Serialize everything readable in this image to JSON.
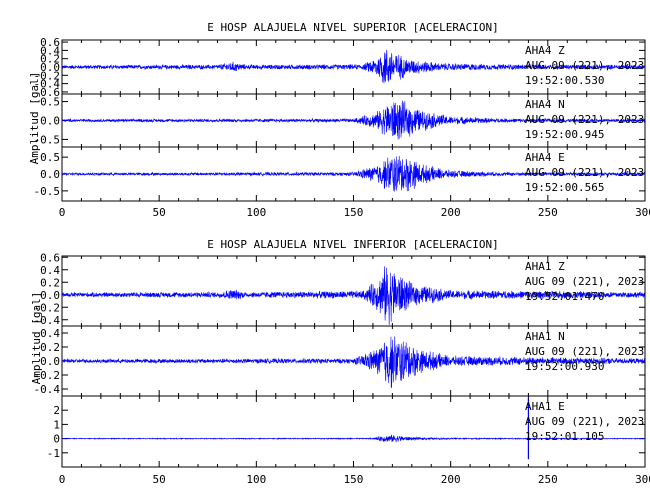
{
  "chart_data": [
    {
      "type": "line",
      "title": "E HOSP ALAJUELA NIVEL SUPERIOR [ACELERACION]",
      "ylabel": "Amplitud [gal]",
      "xlabel": "",
      "xlim": [
        0,
        300
      ],
      "x_ticks": [
        0,
        50,
        100,
        150,
        200,
        250,
        300
      ],
      "grid": false,
      "line_color": "#0000ff",
      "series": [
        {
          "name": "AHA4 Z",
          "station": "AHA4",
          "component": "Z",
          "date": "AUG 09 (221), 2023",
          "time": "19:52:00.530",
          "ylim": [
            -0.65,
            0.65
          ],
          "y_ticks": [
            "0.6",
            "0.4",
            "0.2",
            "0.0",
            "-0.2",
            "-0.4",
            "-0.6"
          ],
          "y_tick_values": [
            0.6,
            0.4,
            0.2,
            0.0,
            -0.2,
            -0.4,
            -0.6
          ],
          "envelope": [
            [
              0,
              0.05
            ],
            [
              80,
              0.06
            ],
            [
              88,
              0.14
            ],
            [
              95,
              0.06
            ],
            [
              155,
              0.07
            ],
            [
              163,
              0.3
            ],
            [
              166,
              0.56
            ],
            [
              170,
              0.45
            ],
            [
              178,
              0.22
            ],
            [
              195,
              0.1
            ],
            [
              225,
              0.07
            ],
            [
              300,
              0.06
            ]
          ]
        },
        {
          "name": "AHA4 N",
          "station": "AHA4",
          "component": "N",
          "date": "AUG 09 (221), 2023",
          "time": "19:52:00.945",
          "ylim": [
            -0.7,
            0.7
          ],
          "y_ticks": [
            "0.5",
            "0.0",
            "-0.5"
          ],
          "y_tick_values": [
            0.5,
            0.0,
            -0.5
          ],
          "envelope": [
            [
              0,
              0.04
            ],
            [
              150,
              0.05
            ],
            [
              162,
              0.25
            ],
            [
              170,
              0.62
            ],
            [
              176,
              0.55
            ],
            [
              185,
              0.3
            ],
            [
              200,
              0.12
            ],
            [
              225,
              0.06
            ],
            [
              300,
              0.05
            ]
          ]
        },
        {
          "name": "AHA4 E",
          "station": "AHA4",
          "component": "E",
          "date": "AUG 09 (221), 2023",
          "time": "19:52:00.565",
          "ylim": [
            -0.8,
            0.8
          ],
          "y_ticks": [
            "0.5",
            "0.0",
            "-0.5"
          ],
          "y_tick_values": [
            0.5,
            0.0,
            -0.5
          ],
          "envelope": [
            [
              0,
              0.04
            ],
            [
              150,
              0.06
            ],
            [
              162,
              0.3
            ],
            [
              170,
              0.68
            ],
            [
              177,
              0.62
            ],
            [
              186,
              0.3
            ],
            [
              200,
              0.12
            ],
            [
              225,
              0.06
            ],
            [
              300,
              0.05
            ]
          ]
        }
      ]
    },
    {
      "type": "line",
      "title": "E HOSP ALAJUELA NIVEL INFERIOR [ACELERACION]",
      "ylabel": "Amplitud [gal]",
      "xlabel": "",
      "xlim": [
        0,
        300
      ],
      "x_ticks": [
        0,
        50,
        100,
        150,
        200,
        250,
        300
      ],
      "grid": false,
      "line_color": "#0000ff",
      "series": [
        {
          "name": "AHA1 Z",
          "station": "AHA1",
          "component": "Z",
          "date": "AUG 09 (221), 2023",
          "time": "19:52:01.470",
          "ylim": [
            -0.5,
            0.62
          ],
          "y_ticks": [
            "0.6",
            "0.4",
            "0.2",
            "0.0",
            "-0.2",
            "-0.4"
          ],
          "y_tick_values": [
            0.6,
            0.4,
            0.2,
            0.0,
            -0.2,
            -0.4
          ],
          "envelope": [
            [
              0,
              0.04
            ],
            [
              80,
              0.05
            ],
            [
              88,
              0.1
            ],
            [
              95,
              0.05
            ],
            [
              155,
              0.07
            ],
            [
              163,
              0.3
            ],
            [
              167,
              0.56
            ],
            [
              171,
              0.45
            ],
            [
              180,
              0.2
            ],
            [
              200,
              0.08
            ],
            [
              300,
              0.05
            ]
          ]
        },
        {
          "name": "AHA1 N",
          "station": "AHA1",
          "component": "N",
          "date": "AUG 09 (221), 2023",
          "time": "19:52:00.930",
          "ylim": [
            -0.5,
            0.5
          ],
          "y_ticks": [
            "0.4",
            "0.2",
            "0.0",
            "-0.2",
            "-0.4"
          ],
          "y_tick_values": [
            0.4,
            0.2,
            0.0,
            -0.2,
            -0.4
          ],
          "envelope": [
            [
              0,
              0.03
            ],
            [
              150,
              0.04
            ],
            [
              162,
              0.2
            ],
            [
              168,
              0.45
            ],
            [
              174,
              0.38
            ],
            [
              185,
              0.18
            ],
            [
              200,
              0.08
            ],
            [
              300,
              0.04
            ]
          ]
        },
        {
          "name": "AHA1 E",
          "station": "AHA1",
          "component": "E",
          "date": "AUG 09 (221), 2023",
          "time": "19:52:01.105",
          "ylim": [
            -2.0,
            3.0
          ],
          "y_ticks": [
            "2",
            "1",
            "0",
            "-1"
          ],
          "y_tick_values": [
            2,
            1,
            0,
            -1
          ],
          "envelope": [
            [
              0,
              0.03
            ],
            [
              160,
              0.04
            ],
            [
              165,
              0.25
            ],
            [
              170,
              0.3
            ],
            [
              180,
              0.12
            ],
            [
              200,
              0.05
            ],
            [
              300,
              0.03
            ]
          ],
          "spike": {
            "x": 240,
            "ymax": 2.85,
            "ymin": -1.45
          }
        }
      ]
    }
  ]
}
